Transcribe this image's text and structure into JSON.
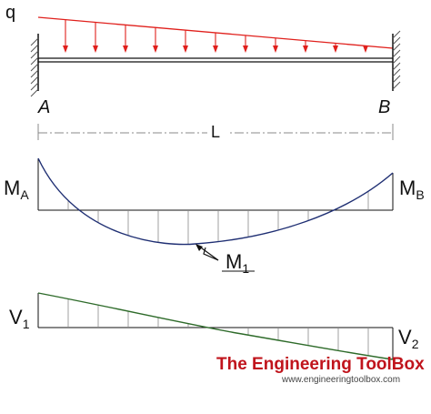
{
  "labels": {
    "load": "q",
    "support_left": "A",
    "support_right": "B",
    "span": "L",
    "moment_left": "M",
    "moment_left_sub": "A",
    "moment_right": "M",
    "moment_right_sub": "B",
    "moment_mid": "M",
    "moment_mid_sub": "1",
    "shear_left": "V",
    "shear_left_sub": "1",
    "shear_right": "V",
    "shear_right_sub": "2"
  },
  "brand": {
    "name": "The Engineering ToolBox",
    "url": "www.engineeringtoolbox.com",
    "color": "#c0141c"
  },
  "colors": {
    "load": "#e0201c",
    "moment": "#1f2f73",
    "shear": "#2e6b2a",
    "structure": "#111111",
    "hatch": "#555555",
    "grid": "#888888"
  },
  "icons": {
    "left_support": "fixed-support-hatch",
    "right_support": "fixed-support-hatch",
    "load_arrows": "down-arrow"
  }
}
